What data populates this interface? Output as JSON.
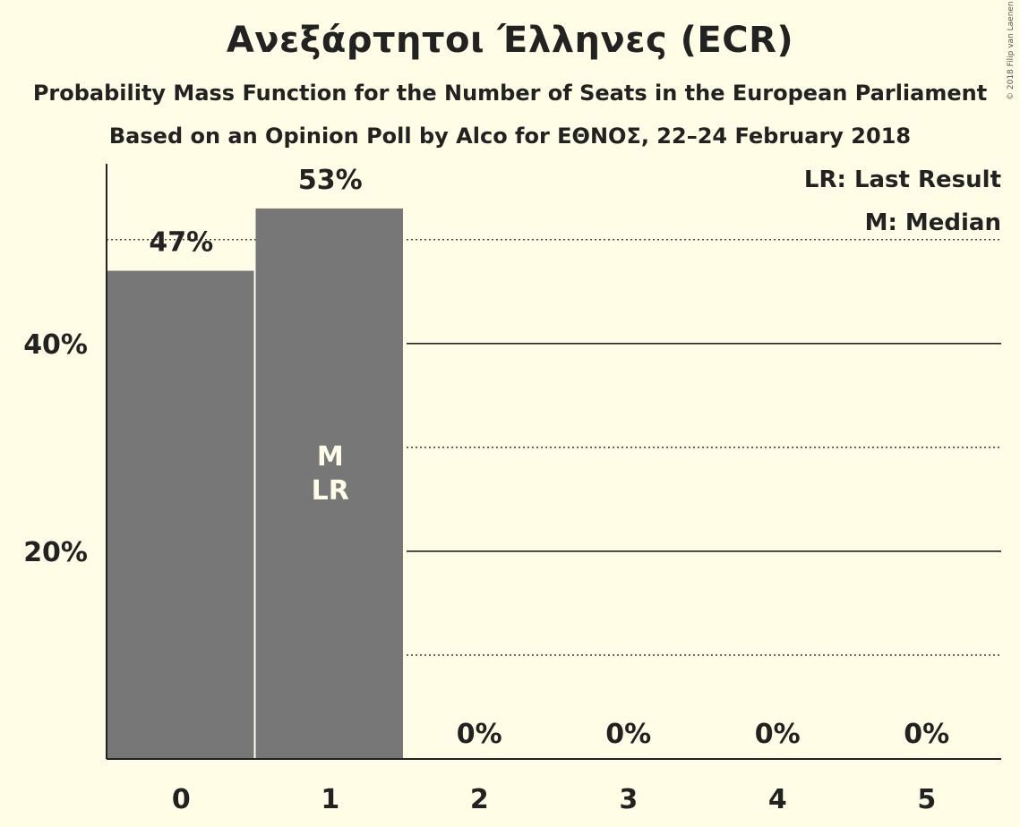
{
  "title": "Ανεξάρτητοι Έλληνες (ECR)",
  "subtitle": "Probability Mass Function for the Number of Seats in the European Parliament",
  "subtitle2": "Based on an Opinion Poll by Alco for ΕΘΝΟΣ, 22–24 February 2018",
  "copyright": "© 2018 Filip van Laenen",
  "legend": {
    "last_result": "LR: Last Result",
    "median": "M: Median"
  },
  "colors": {
    "background": "#fffde6",
    "bar": "#777777",
    "text": "#222222"
  },
  "chart_data": {
    "type": "bar",
    "categories": [
      "0",
      "1",
      "2",
      "3",
      "4",
      "5"
    ],
    "values": [
      47,
      53,
      0,
      0,
      0,
      0
    ],
    "value_labels": [
      "47%",
      "53%",
      "0%",
      "0%",
      "0%",
      "0%"
    ],
    "ylim": [
      0,
      57.3
    ],
    "y_ticks": [
      {
        "value": 20,
        "label": "20%"
      },
      {
        "value": 40,
        "label": "40%"
      }
    ],
    "solid_gridlines": [
      20,
      40
    ],
    "dotted_gridlines": [
      10,
      30,
      50
    ],
    "median_category": "1",
    "last_result_category": "1",
    "median_marker": "M",
    "last_result_marker": "LR",
    "legend_position": "top-right"
  }
}
